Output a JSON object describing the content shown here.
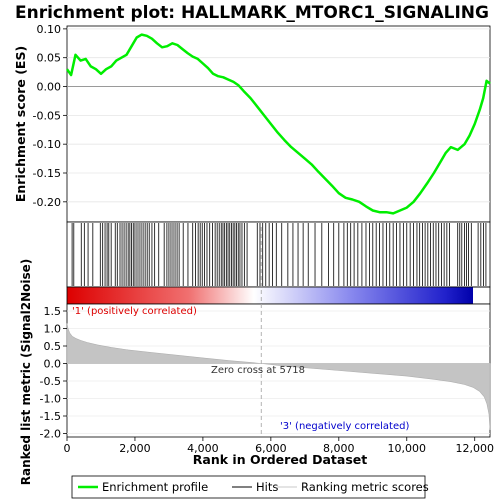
{
  "chart_data": {
    "type": "line",
    "title": "Enrichment plot: HALLMARK_MTORC1_SIGNALING",
    "xlabel": "Rank in Ordered Dataset",
    "es_panel": {
      "ylabel": "Enrichment score (ES)",
      "ylim": [
        -0.235,
        0.105
      ],
      "yticks": [
        "0.10",
        "0.05",
        "0.00",
        "-0.05",
        "-0.10",
        "-0.15",
        "-0.20"
      ],
      "series": [
        {
          "name": "Enrichment profile",
          "color": "#00ee00",
          "x": [
            0,
            120,
            250,
            400,
            550,
            700,
            850,
            1000,
            1150,
            1300,
            1450,
            1600,
            1750,
            1900,
            2050,
            2200,
            2350,
            2500,
            2650,
            2800,
            2950,
            3100,
            3250,
            3400,
            3550,
            3700,
            3850,
            4000,
            4150,
            4300,
            4450,
            4600,
            4750,
            4900,
            5050,
            5200,
            5400,
            5600,
            5800,
            6000,
            6200,
            6400,
            6600,
            6800,
            7000,
            7200,
            7400,
            7600,
            7800,
            8000,
            8200,
            8400,
            8600,
            8800,
            9000,
            9200,
            9400,
            9600,
            9800,
            10000,
            10200,
            10400,
            10600,
            10800,
            11000,
            11150,
            11300,
            11500,
            11700,
            11850,
            12000,
            12150,
            12250,
            12350,
            12450
          ],
          "y": [
            0.03,
            0.02,
            0.055,
            0.045,
            0.048,
            0.035,
            0.03,
            0.022,
            0.03,
            0.035,
            0.045,
            0.05,
            0.055,
            0.07,
            0.085,
            0.09,
            0.088,
            0.083,
            0.075,
            0.068,
            0.07,
            0.075,
            0.072,
            0.065,
            0.058,
            0.052,
            0.048,
            0.04,
            0.032,
            0.022,
            0.018,
            0.016,
            0.012,
            0.008,
            0.002,
            -0.008,
            -0.02,
            -0.035,
            -0.05,
            -0.065,
            -0.08,
            -0.093,
            -0.105,
            -0.115,
            -0.125,
            -0.135,
            -0.148,
            -0.16,
            -0.172,
            -0.185,
            -0.193,
            -0.196,
            -0.2,
            -0.208,
            -0.215,
            -0.218,
            -0.218,
            -0.22,
            -0.215,
            -0.21,
            -0.2,
            -0.185,
            -0.168,
            -0.15,
            -0.13,
            -0.115,
            -0.105,
            -0.11,
            -0.1,
            -0.085,
            -0.065,
            -0.04,
            -0.02,
            0.01,
            0.005
          ]
        }
      ]
    },
    "hits_panel": {
      "legend": "Hits",
      "hit_ranks": [
        150,
        200,
        420,
        510,
        620,
        760,
        980,
        1050,
        1120,
        1180,
        1230,
        1300,
        1420,
        1480,
        1560,
        1620,
        1680,
        1740,
        1800,
        1850,
        1900,
        1950,
        2000,
        2060,
        2120,
        2180,
        2240,
        2300,
        2360,
        2420,
        2500,
        2580,
        2700,
        2860,
        2940,
        3000,
        3060,
        3120,
        3180,
        3240,
        3300,
        3420,
        3560,
        3700,
        3780,
        3860,
        3920,
        3980,
        4050,
        4120,
        4200,
        4280,
        4360,
        4420,
        4480,
        4540,
        4590,
        4640,
        4690,
        4740,
        4790,
        4840,
        4890,
        4940,
        4990,
        5040,
        5090,
        5150,
        5220,
        5300,
        5600,
        5680,
        5760,
        5850,
        5950,
        6050,
        6160,
        6320,
        6500,
        6650,
        6800,
        6950,
        7100,
        7300,
        7500,
        7700,
        7850,
        8000,
        8150,
        8250,
        8350,
        8450,
        8560,
        8680,
        8800,
        8900,
        9000,
        9100,
        9200,
        9300,
        9400,
        9500,
        9600,
        9700,
        9800,
        9900,
        10000,
        10100,
        10200,
        10300,
        10380,
        10460,
        10540,
        10620,
        10700,
        10780,
        10860,
        10940,
        11020,
        11100,
        11180,
        11260,
        11500,
        11560,
        11620,
        11700,
        11760,
        11820,
        11900,
        12100,
        12180,
        12260,
        12330
      ]
    },
    "metric_panel": {
      "ylabel": "Ranked list metric (Signal2Noise)",
      "legend": "Ranking metric scores",
      "ylim": [
        -2.1,
        1.7
      ],
      "yticks": [
        "1.5",
        "1.0",
        "0.5",
        "0.0",
        "-0.5",
        "-1.0",
        "-1.5",
        "-2.0"
      ],
      "x": [
        0,
        30,
        80,
        150,
        250,
        400,
        600,
        900,
        1300,
        1800,
        2500,
        3200,
        4000,
        4800,
        5400,
        5718,
        6200,
        7000,
        8000,
        9000,
        10000,
        10800,
        11300,
        11700,
        11950,
        12150,
        12280,
        12360,
        12420,
        12450
      ],
      "y": [
        1.15,
        1.0,
        0.87,
        0.78,
        0.72,
        0.66,
        0.6,
        0.53,
        0.46,
        0.39,
        0.31,
        0.24,
        0.16,
        0.08,
        0.03,
        0.0,
        -0.05,
        -0.12,
        -0.2,
        -0.28,
        -0.36,
        -0.45,
        -0.52,
        -0.6,
        -0.68,
        -0.8,
        -0.95,
        -1.15,
        -1.45,
        -1.9
      ],
      "zero_cross_label": "Zero cross at 5718",
      "positive_label": "'1' (positively correlated)",
      "negative_label": "'3' (negatively correlated)",
      "positive_color": "#dd0000",
      "negative_color": "#0000cc"
    },
    "x_axis": {
      "xlim": [
        0,
        12450
      ],
      "xticks": [
        "0",
        "2,000",
        "4,000",
        "6,000",
        "8,000",
        "10,000",
        "12,000"
      ]
    },
    "legend_entries": [
      "Enrichment profile",
      "Hits",
      "Ranking metric scores"
    ]
  }
}
